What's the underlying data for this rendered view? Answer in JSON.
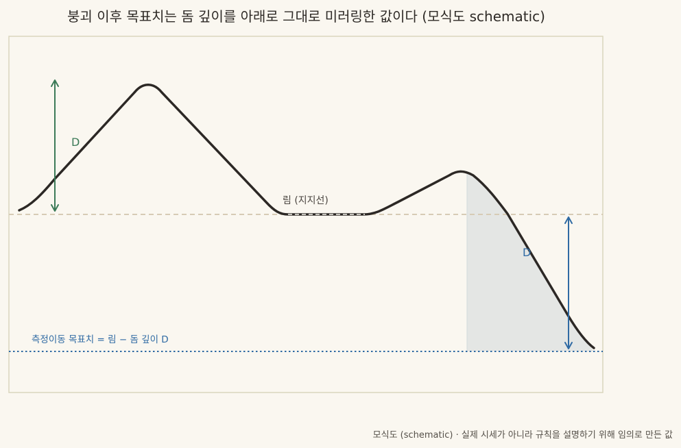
{
  "title": "붕괴 이후 목표치는 돔 깊이를 아래로 그대로 미러링한 값이다 (모식도 schematic)",
  "labels": {
    "depth_top": "D",
    "depth_bottom": "D",
    "rim": "림 (지지선)",
    "target": "측정이동 목표치 = 림 − 돔 깊이 D"
  },
  "footer": "모식도 (schematic) · 실제 시세가 아니라 규칙을 설명하기 위해 임의로 만든 값",
  "colors": {
    "background": "#faf7f0",
    "frame": "#d9d6bd",
    "price_line": "#2c2825",
    "rim_line": "#d7cbb5",
    "target_line": "#2f6aa3",
    "depth_arrow_top": "#3b7a57",
    "depth_arrow_bottom": "#2f6aa3",
    "shade": "#e4e6e4"
  }
}
